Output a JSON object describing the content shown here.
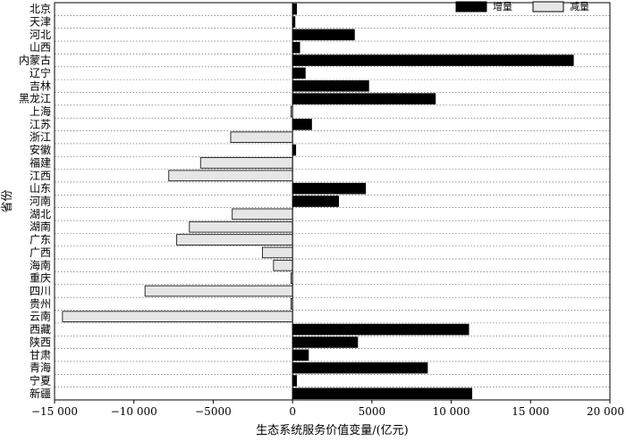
{
  "chart_data": {
    "type": "bar",
    "orientation": "horizontal",
    "xlabel": "生态系统服务价值变量/(亿元)",
    "ylabel": "省份",
    "xlim": [
      -15000,
      20000
    ],
    "xticks": [
      -15000,
      -10000,
      -5000,
      0,
      5000,
      10000,
      15000,
      20000
    ],
    "xtick_labels": [
      "−15 000",
      "−10 000",
      "−5000",
      "0",
      "5000",
      "10 000",
      "15 000",
      "20 000"
    ],
    "grid": "horizontal dotted",
    "legend_position": "top-right",
    "legend": {
      "increase": "增量",
      "decrease": "减量"
    },
    "colors": {
      "increase": "#000000",
      "decrease": "#e6e6e6",
      "outline": "#000000"
    },
    "categories": [
      "北京",
      "天津",
      "河北",
      "山西",
      "内蒙古",
      "辽宁",
      "吉林",
      "黑龙江",
      "上海",
      "江苏",
      "浙江",
      "安徽",
      "福建",
      "江西",
      "山东",
      "河南",
      "湖北",
      "湖南",
      "广东",
      "广西",
      "海南",
      "重庆",
      "四川",
      "贵州",
      "云南",
      "西藏",
      "陕西",
      "甘肃",
      "青海",
      "宁夏",
      "新疆"
    ],
    "values": [
      250,
      150,
      3900,
      450,
      17700,
      800,
      4800,
      9000,
      -100,
      1200,
      -3900,
      200,
      -5800,
      -7800,
      4600,
      2900,
      -3800,
      -6500,
      -7300,
      -1900,
      -1200,
      -100,
      -9300,
      -100,
      -14500,
      11100,
      4100,
      1000,
      8500,
      250,
      11300
    ]
  }
}
